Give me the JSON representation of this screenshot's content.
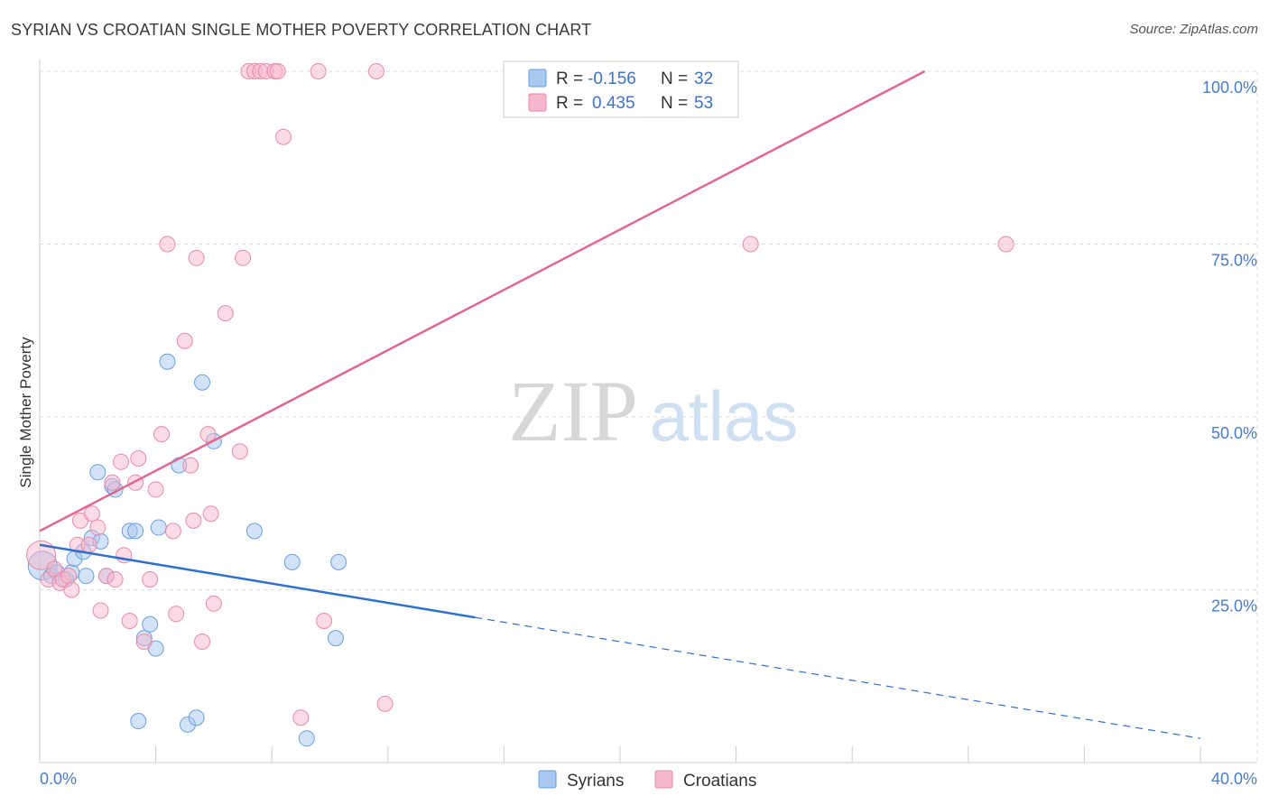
{
  "title": "SYRIAN VS CROATIAN SINGLE MOTHER POVERTY CORRELATION CHART",
  "source": "Source: ZipAtlas.com",
  "watermark": {
    "zip": "ZIP",
    "atlas": "atlas"
  },
  "colors": {
    "syrians_fill": "#a8c8f0",
    "syrians_stroke": "#6a9ee0",
    "syrians_line": "#2f6fd0",
    "croatians_fill": "#f7b8cc",
    "croatians_stroke": "#e88aa8",
    "croatians_line": "#e06890",
    "grid": "#dddddd",
    "tick_text": "#4a7cc9"
  },
  "legend": {
    "syrians": {
      "r_label": "R =",
      "r_value": "-0.156",
      "n_label": "N =",
      "n_value": "32"
    },
    "croatians": {
      "r_label": "R =",
      "r_value": "0.435",
      "n_label": "N =",
      "n_value": "53"
    }
  },
  "chart_data": {
    "type": "scatter",
    "title": "SYRIAN VS CROATIAN SINGLE MOTHER POVERTY CORRELATION CHART",
    "xlabel": "",
    "ylabel": "Single Mother Poverty",
    "xlim": [
      0,
      42
    ],
    "ylim": [
      0,
      100
    ],
    "x_tick_labels": [
      "0.0%",
      "40.0%"
    ],
    "y_ticks": [
      25,
      50,
      75,
      100
    ],
    "y_tick_labels": [
      "25.0%",
      "50.0%",
      "75.0%",
      "100.0%"
    ],
    "legend_entries": [
      "Syrians",
      "Croatians"
    ],
    "series": [
      {
        "name": "Syrians",
        "points": [
          [
            0.1,
            28.5
          ],
          [
            0.4,
            27.0
          ],
          [
            0.6,
            27.5
          ],
          [
            0.9,
            26.5
          ],
          [
            1.1,
            27.5
          ],
          [
            1.2,
            29.5
          ],
          [
            1.5,
            30.5
          ],
          [
            1.6,
            27.0
          ],
          [
            1.8,
            32.5
          ],
          [
            2.0,
            42.0
          ],
          [
            2.1,
            32.0
          ],
          [
            2.3,
            27.0
          ],
          [
            2.5,
            40.0
          ],
          [
            2.6,
            39.5
          ],
          [
            3.1,
            33.5
          ],
          [
            3.3,
            33.5
          ],
          [
            3.4,
            6.0
          ],
          [
            3.6,
            18.0
          ],
          [
            3.8,
            20.0
          ],
          [
            4.0,
            16.5
          ],
          [
            4.1,
            34.0
          ],
          [
            4.4,
            58.0
          ],
          [
            4.8,
            43.0
          ],
          [
            5.1,
            5.5
          ],
          [
            5.4,
            6.5
          ],
          [
            5.6,
            55.0
          ],
          [
            6.0,
            46.5
          ],
          [
            7.4,
            33.5
          ],
          [
            8.7,
            29.0
          ],
          [
            9.2,
            3.5
          ],
          [
            10.2,
            18.0
          ],
          [
            10.3,
            29.0
          ]
        ]
      },
      {
        "name": "Croatians",
        "points": [
          [
            0.05,
            30.0
          ],
          [
            0.3,
            26.5
          ],
          [
            0.5,
            28.0
          ],
          [
            0.7,
            26.0
          ],
          [
            0.8,
            26.5
          ],
          [
            1.0,
            27.0
          ],
          [
            1.1,
            25.0
          ],
          [
            1.3,
            31.5
          ],
          [
            1.4,
            35.0
          ],
          [
            1.7,
            31.5
          ],
          [
            1.8,
            36.0
          ],
          [
            2.0,
            34.0
          ],
          [
            2.1,
            22.0
          ],
          [
            2.3,
            27.0
          ],
          [
            2.5,
            40.5
          ],
          [
            2.6,
            26.5
          ],
          [
            2.8,
            43.5
          ],
          [
            2.9,
            30.0
          ],
          [
            3.1,
            20.5
          ],
          [
            3.3,
            40.5
          ],
          [
            3.4,
            44.0
          ],
          [
            3.6,
            17.5
          ],
          [
            3.8,
            26.5
          ],
          [
            4.0,
            39.5
          ],
          [
            4.2,
            47.5
          ],
          [
            4.4,
            75.0
          ],
          [
            4.6,
            33.5
          ],
          [
            4.7,
            21.5
          ],
          [
            5.0,
            61.0
          ],
          [
            5.2,
            43.0
          ],
          [
            5.3,
            35.0
          ],
          [
            5.4,
            73.0
          ],
          [
            5.6,
            17.5
          ],
          [
            5.8,
            47.5
          ],
          [
            5.9,
            36.0
          ],
          [
            6.0,
            23.0
          ],
          [
            6.4,
            65.0
          ],
          [
            6.9,
            45.0
          ],
          [
            7.0,
            73.0
          ],
          [
            7.2,
            100.0
          ],
          [
            7.4,
            100.0
          ],
          [
            7.6,
            100.0
          ],
          [
            7.8,
            100.0
          ],
          [
            8.1,
            100.0
          ],
          [
            8.2,
            100.0
          ],
          [
            8.4,
            90.5
          ],
          [
            9.0,
            6.5
          ],
          [
            9.6,
            100.0
          ],
          [
            9.8,
            20.5
          ],
          [
            11.6,
            100.0
          ],
          [
            11.9,
            8.5
          ],
          [
            24.5,
            75.0
          ],
          [
            33.3,
            75.0
          ]
        ]
      }
    ],
    "trend_lines": [
      {
        "name": "Syrians",
        "solid_from": [
          0,
          31.5
        ],
        "solid_to": [
          15,
          21.0
        ],
        "dashed_to": [
          40,
          3.5
        ]
      },
      {
        "name": "Croatians",
        "from": [
          0,
          33.5
        ],
        "to": [
          30.5,
          100.0
        ]
      }
    ]
  }
}
